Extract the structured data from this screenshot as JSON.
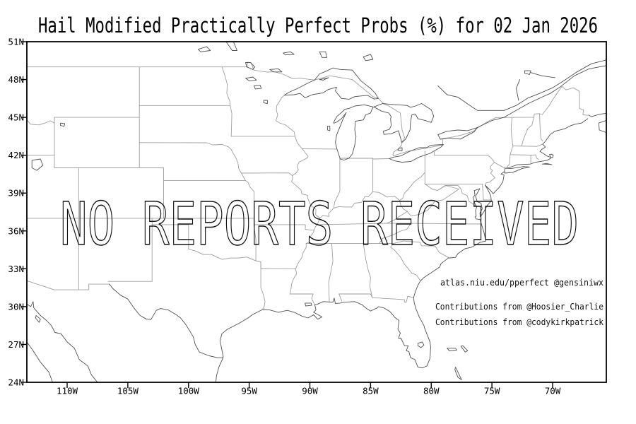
{
  "title": "Hail Modified Practically Perfect Probs (%) for 02 Jan 2026",
  "watermark": "NO REPORTS RECEIVED",
  "credits": {
    "line1": "atlas.niu.edu/pperfect @gensiniwx",
    "line2": "Contributions from @Hoosier_Charlie",
    "line3": "Contributions from @codykirkpatrick"
  },
  "axes": {
    "lat_ticks": [
      {
        "label": "51N",
        "lat": 51
      },
      {
        "label": "48N",
        "lat": 48
      },
      {
        "label": "45N",
        "lat": 45
      },
      {
        "label": "42N",
        "lat": 42
      },
      {
        "label": "39N",
        "lat": 39
      },
      {
        "label": "36N",
        "lat": 36
      },
      {
        "label": "33N",
        "lat": 33
      },
      {
        "label": "30N",
        "lat": 30
      },
      {
        "label": "27N",
        "lat": 27
      },
      {
        "label": "24N",
        "lat": 24
      }
    ],
    "lon_ticks": [
      {
        "label": "110W",
        "lon": -110
      },
      {
        "label": "105W",
        "lon": -105
      },
      {
        "label": "100W",
        "lon": -100
      },
      {
        "label": "95W",
        "lon": -95
      },
      {
        "label": "90W",
        "lon": -90
      },
      {
        "label": "85W",
        "lon": -85
      },
      {
        "label": "80W",
        "lon": -80
      },
      {
        "label": "75W",
        "lon": -75
      },
      {
        "label": "70W",
        "lon": -70
      }
    ]
  },
  "map": {
    "projection": "equirectangular",
    "lon_range": [
      -113.3,
      -65.6
    ],
    "lat_range": [
      24,
      51
    ]
  },
  "colors": {
    "frame": "#000000",
    "coast": "#4f4f4f",
    "border": "#9e9e9e",
    "label": "#000000",
    "watermark_stroke": "#111111"
  }
}
